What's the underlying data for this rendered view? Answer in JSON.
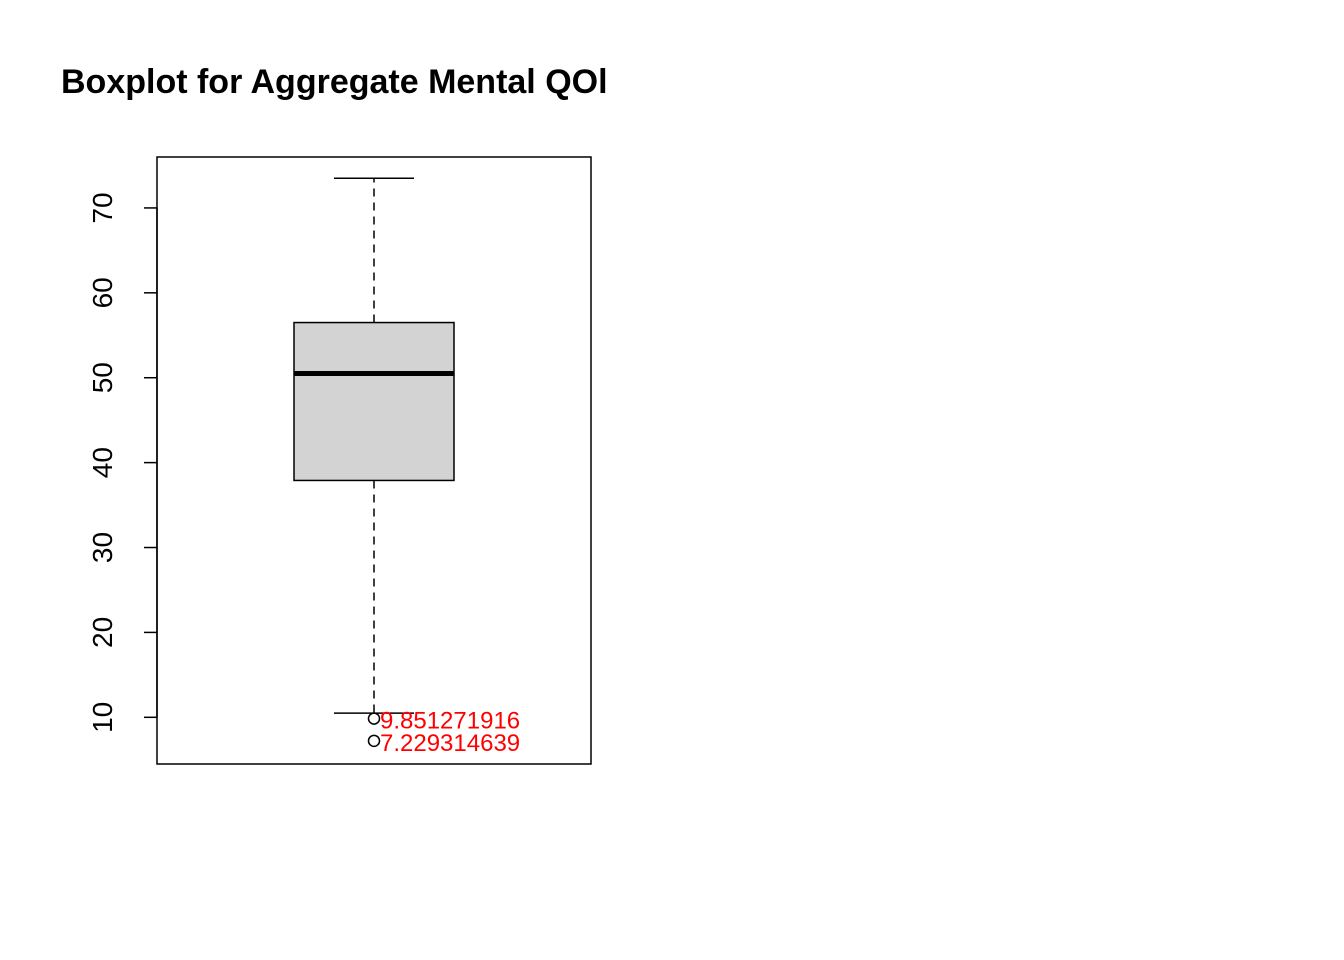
{
  "chart_data": {
    "type": "boxplot",
    "title": "Boxplot for Aggregate Mental QOl",
    "xlabel": "",
    "ylabel": "",
    "ylim": [
      4.5,
      76.0
    ],
    "y_ticks": [
      10,
      20,
      30,
      40,
      50,
      60,
      70
    ],
    "box": {
      "whisker_low": 10.5,
      "q1": 37.9,
      "median": 50.5,
      "q3": 56.5,
      "whisker_high": 73.5
    },
    "outliers": [
      {
        "value": 9.851271916,
        "label": "9.851271916"
      },
      {
        "value": 7.229314639,
        "label": "7.229314639"
      }
    ],
    "colors": {
      "box_fill": "#d3d3d3",
      "outlier_label": "#ff0000",
      "line": "#000000"
    }
  }
}
